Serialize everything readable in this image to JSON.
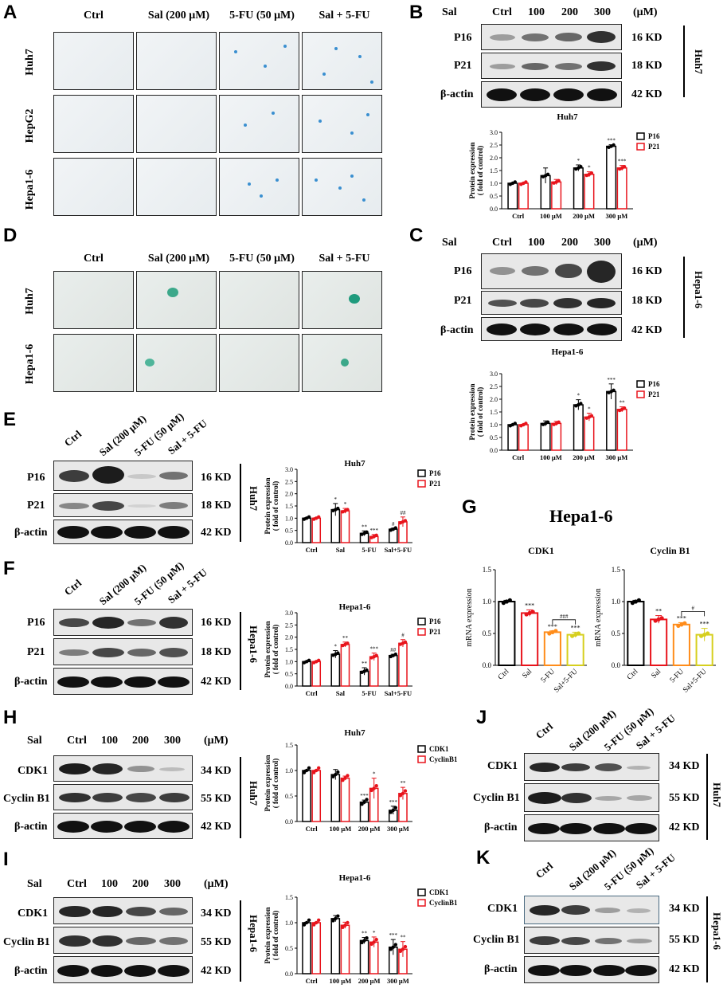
{
  "panels": {
    "A": "A",
    "B": "B",
    "C": "C",
    "D": "D",
    "E": "E",
    "F": "F",
    "G": "G",
    "H": "H",
    "I": "I",
    "J": "J",
    "K": "K"
  },
  "sa_beta": {
    "col_headers": [
      "Ctrl",
      "Sal (200 μM)",
      "5-FU (50 μM)",
      "Sal + 5-FU"
    ],
    "rows_A": [
      "Huh7",
      "HepG2",
      "Hepa1-6"
    ],
    "rows_D": [
      "Huh7",
      "Hepa1-6"
    ]
  },
  "dose": {
    "sal": "Sal",
    "unit": "(μM)",
    "lanes": [
      "Ctrl",
      "100",
      "200",
      "300"
    ]
  },
  "treat_lanes": [
    "Ctrl",
    "Sal (200 μM)",
    "5-FU (50 μM)",
    "Sal + 5-FU"
  ],
  "cells": {
    "huh7": "Huh7",
    "hepa": "Hepa1-6"
  },
  "proteins": {
    "p16": "P16",
    "p21": "P21",
    "actin": "β-actin",
    "cdk1": "CDK1",
    "cyclinb1": "Cyclin B1"
  },
  "kd": {
    "16": "16 KD",
    "18": "18 KD",
    "42": "42 KD",
    "34": "34 KD",
    "55": "55 KD"
  },
  "G_title": "Hepa1-6",
  "chart_data": [
    {
      "id": "B",
      "type": "bar",
      "title": "Huh7",
      "ylabel": "Protein expression\n( fold of control)",
      "ylim": [
        0,
        3.0
      ],
      "categories": [
        "Ctrl",
        "100 μM",
        "200 μM",
        "300 μM"
      ],
      "series": [
        {
          "name": "P16",
          "color": "#000000",
          "values": [
            1.0,
            1.3,
            1.6,
            2.45
          ],
          "errors": [
            0.02,
            0.3,
            0.12,
            0.06
          ],
          "sig": [
            "",
            "",
            "*",
            "***"
          ]
        },
        {
          "name": "P21",
          "color": "#e8141c",
          "values": [
            1.0,
            1.05,
            1.35,
            1.6
          ],
          "errors": [
            0.02,
            0.1,
            0.1,
            0.1
          ],
          "sig": [
            "",
            "",
            "*",
            "***"
          ]
        }
      ]
    },
    {
      "id": "C",
      "type": "bar",
      "title": "Hepa1-6",
      "ylabel": "Protein expression\n( fold of control)",
      "ylim": [
        0,
        3.0
      ],
      "categories": [
        "Ctrl",
        "100 μM",
        "200 μM",
        "300 μM"
      ],
      "series": [
        {
          "name": "P16",
          "color": "#000000",
          "values": [
            1.0,
            1.05,
            1.78,
            2.3
          ],
          "errors": [
            0.02,
            0.1,
            0.2,
            0.3
          ],
          "sig": [
            "",
            "",
            "*",
            "***"
          ]
        },
        {
          "name": "P21",
          "color": "#e8141c",
          "values": [
            1.0,
            1.05,
            1.3,
            1.6
          ],
          "errors": [
            0.02,
            0.08,
            0.15,
            0.1
          ],
          "sig": [
            "",
            "",
            "*",
            "**"
          ]
        }
      ]
    },
    {
      "id": "E",
      "type": "bar",
      "title": "Huh7",
      "ylabel": "Protein expression\n( fold of control)",
      "ylim": [
        0,
        3.0
      ],
      "categories": [
        "Ctrl",
        "Sal",
        "5-FU",
        "Sal+5-FU"
      ],
      "series": [
        {
          "name": "P16",
          "color": "#000000",
          "values": [
            1.0,
            1.35,
            0.38,
            0.55
          ],
          "errors": [
            0.02,
            0.25,
            0.1,
            0.04
          ],
          "sig": [
            "",
            "*",
            "**",
            "#"
          ]
        },
        {
          "name": "P21",
          "color": "#e8141c",
          "values": [
            1.0,
            1.3,
            0.25,
            0.85
          ],
          "errors": [
            0.02,
            0.1,
            0.08,
            0.2
          ],
          "sig": [
            "",
            "*",
            "***",
            "##"
          ]
        }
      ]
    },
    {
      "id": "F",
      "type": "bar",
      "title": "Hepa1-6",
      "ylabel": "Protein expression\n( fold of control)",
      "ylim": [
        0,
        3.0
      ],
      "categories": [
        "Ctrl",
        "Sal",
        "5-FU",
        "Sal+5-FU"
      ],
      "series": [
        {
          "name": "P16",
          "color": "#000000",
          "values": [
            1.0,
            1.3,
            0.6,
            1.25
          ],
          "errors": [
            0.02,
            0.15,
            0.15,
            0.05
          ],
          "sig": [
            "",
            "*",
            "**",
            "##"
          ]
        },
        {
          "name": "P21",
          "color": "#e8141c",
          "values": [
            1.0,
            1.7,
            1.2,
            1.75
          ],
          "errors": [
            0.02,
            0.1,
            0.15,
            0.15
          ],
          "sig": [
            "",
            "**",
            "***",
            "#"
          ]
        }
      ]
    },
    {
      "id": "H",
      "type": "bar",
      "title": "Huh7",
      "ylabel": "Protein expression\n( fold of control)",
      "ylim": [
        0,
        1.5
      ],
      "categories": [
        "Ctrl",
        "100 μM",
        "200 μM",
        "300 μM"
      ],
      "series": [
        {
          "name": "CDK1",
          "color": "#000000",
          "values": [
            1.0,
            0.92,
            0.38,
            0.22
          ],
          "errors": [
            0.01,
            0.1,
            0.04,
            0.08
          ],
          "sig": [
            "",
            "",
            "***",
            "***"
          ]
        },
        {
          "name": "CyclinB1",
          "color": "#e8141c",
          "values": [
            1.0,
            0.85,
            0.65,
            0.55
          ],
          "errors": [
            0.01,
            0.04,
            0.2,
            0.12
          ],
          "sig": [
            "",
            "",
            "*",
            "**"
          ]
        }
      ]
    },
    {
      "id": "I",
      "type": "bar",
      "title": "Hepa1-6",
      "ylabel": "Protein expression\n( fold of control)",
      "ylim": [
        0,
        1.5
      ],
      "categories": [
        "Ctrl",
        "100 μM",
        "200 μM",
        "300 μM"
      ],
      "series": [
        {
          "name": "CDK1",
          "color": "#000000",
          "values": [
            1.0,
            1.08,
            0.65,
            0.52
          ],
          "errors": [
            0.01,
            0.06,
            0.06,
            0.15
          ],
          "sig": [
            "",
            "",
            "**",
            "***"
          ]
        },
        {
          "name": "CyclinB1",
          "color": "#e8141c",
          "values": [
            1.0,
            0.95,
            0.62,
            0.48
          ],
          "errors": [
            0.01,
            0.06,
            0.1,
            0.15
          ],
          "sig": [
            "",
            "",
            "*",
            "**"
          ]
        }
      ]
    },
    {
      "id": "G1",
      "type": "bar",
      "title": "CDK1",
      "ylabel": "mRNA expression",
      "ylim": [
        0,
        1.5
      ],
      "categories": [
        "Ctrl",
        "Sal",
        "5-FU",
        "Sal+5-FU"
      ],
      "values": [
        1.0,
        0.82,
        0.52,
        0.48
      ],
      "errors": [
        0.02,
        0.05,
        0.02,
        0.04
      ],
      "colors": [
        "#000000",
        "#e8141c",
        "#ff8c1a",
        "#d6cf1e"
      ],
      "sig": [
        "",
        "***",
        "***",
        "***"
      ],
      "bracket": "###"
    },
    {
      "id": "G2",
      "type": "bar",
      "title": "Cyclin B1",
      "ylabel": "mRNA expression",
      "ylim": [
        0,
        1.5
      ],
      "categories": [
        "Ctrl",
        "Sal",
        "5-FU",
        "Sal+5-FU"
      ],
      "values": [
        1.0,
        0.72,
        0.64,
        0.48
      ],
      "errors": [
        0.02,
        0.06,
        0.03,
        0.1
      ],
      "colors": [
        "#000000",
        "#e8141c",
        "#ff8c1a",
        "#d6cf1e"
      ],
      "sig": [
        "",
        "**",
        "***",
        "***"
      ],
      "bracket": "#"
    }
  ]
}
